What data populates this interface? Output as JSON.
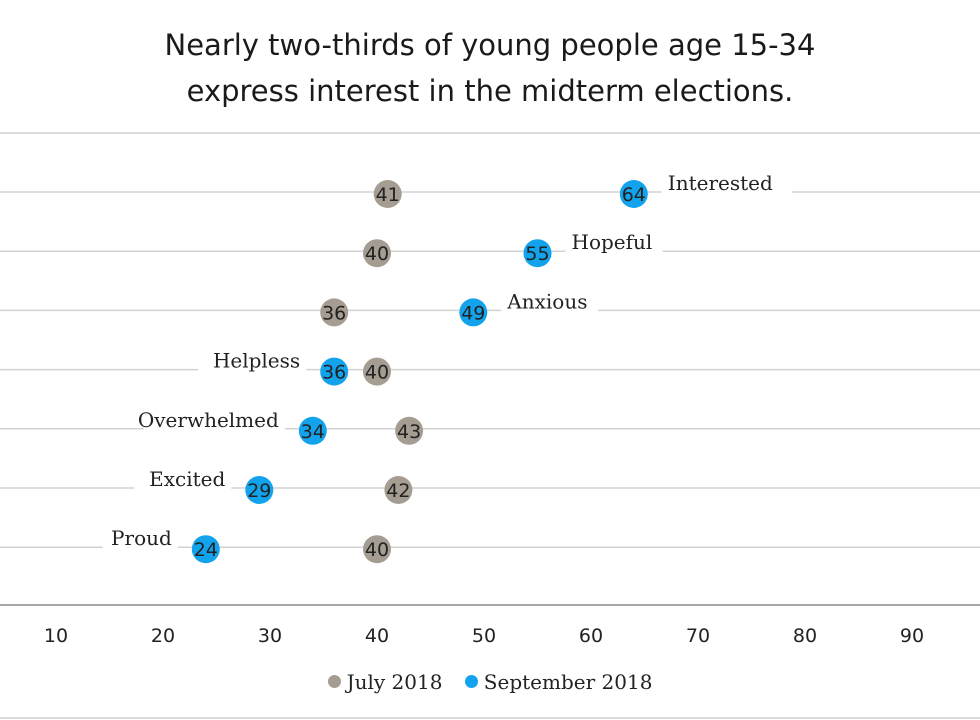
{
  "chart_data": {
    "type": "scatter",
    "title": [
      "Nearly two-thirds of young people age 15-34",
      "express interest in the midterm elections."
    ],
    "xlabel": "",
    "ylabel": "",
    "xlim": [
      5,
      95
    ],
    "xticks": [
      10,
      20,
      30,
      40,
      50,
      60,
      70,
      80,
      90
    ],
    "grid": true,
    "legend_position": "bottom",
    "categories": [
      "Interested",
      "Hopeful",
      "Anxious",
      "Helpless",
      "Overwhelmed",
      "Excited",
      "Proud"
    ],
    "series": [
      {
        "name": "July 2018",
        "color": "#a59d91",
        "values": [
          41,
          40,
          36,
          40,
          43,
          42,
          40
        ]
      },
      {
        "name": "September 2018",
        "color": "#12a3ec",
        "values": [
          64,
          55,
          49,
          36,
          34,
          29,
          24
        ]
      }
    ]
  }
}
